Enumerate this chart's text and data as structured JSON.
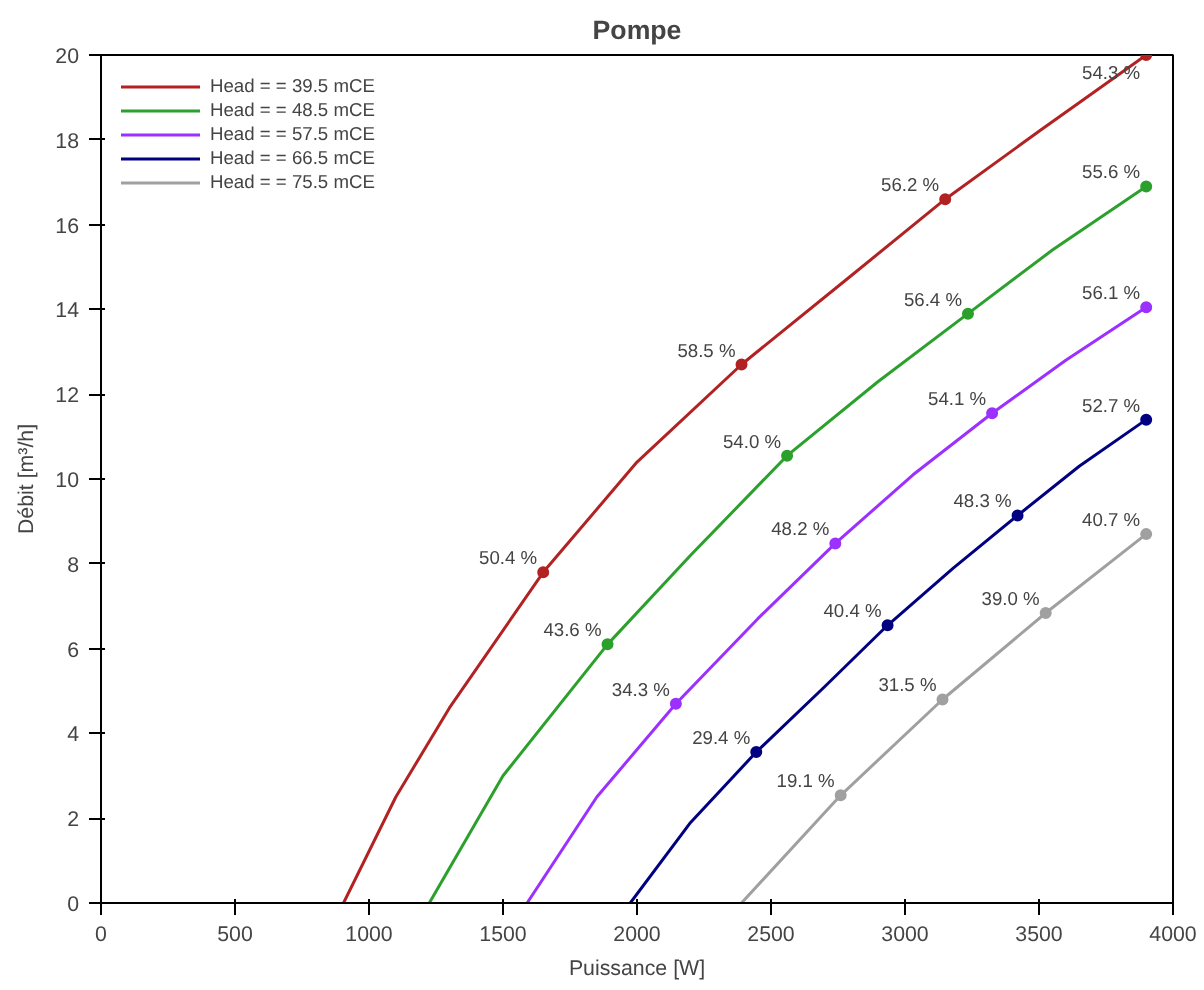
{
  "chart_data": {
    "type": "line",
    "title": "Pompe",
    "xlabel": "Puissance [W]",
    "ylabel": "Débit [m³/h]",
    "xlim": [
      0,
      4000
    ],
    "xticks": [
      0,
      500,
      1000,
      1500,
      2000,
      2500,
      3000,
      3500,
      4000
    ],
    "ylim": [
      0,
      20
    ],
    "yticks": [
      0,
      2,
      4,
      6,
      8,
      10,
      12,
      14,
      16,
      18,
      20
    ],
    "grid": false,
    "legend": "top left",
    "line_style": "solid",
    "series": [
      {
        "name": "Head = = 39.5 mCE",
        "color": "#b22222",
        "marker": "none",
        "x": [
          905,
          1100,
          1300,
          1650,
          2000,
          2390,
          2800,
          3150,
          3500,
          3900
        ],
        "values": [
          0,
          2.5,
          4.6,
          7.8,
          10.4,
          12.7,
          14.8,
          16.6,
          18.2,
          20
        ]
      },
      {
        "name": "Head = = 48.5 mCE",
        "color": "#2ca02c",
        "marker": "none",
        "x": [
          1225,
          1500,
          1890,
          2200,
          2560,
          2900,
          3235,
          3550,
          3900
        ],
        "values": [
          0,
          3.0,
          6.1,
          8.2,
          10.55,
          12.3,
          13.9,
          15.4,
          16.9
        ]
      },
      {
        "name": "Head = = 57.5 mCE",
        "color": "#9b30ff",
        "marker": "none",
        "x": [
          1590,
          1850,
          2145,
          2450,
          2740,
          3030,
          3325,
          3600,
          3900
        ],
        "values": [
          0,
          2.5,
          4.7,
          6.7,
          8.48,
          10.1,
          11.55,
          12.8,
          14.05
        ]
      },
      {
        "name": "Head = = 66.5 mCE",
        "color": "#000080",
        "marker": "none",
        "x": [
          1975,
          2200,
          2445,
          2700,
          2935,
          3180,
          3420,
          3650,
          3900
        ],
        "values": [
          0,
          1.9,
          3.56,
          5.1,
          6.55,
          7.9,
          9.14,
          10.3,
          11.4
        ]
      },
      {
        "name": "Head = = 75.5 mCE",
        "color": "#a0a0a0",
        "marker": "none",
        "x": [
          2390,
          2760,
          3140,
          3525,
          3900
        ],
        "values": [
          0,
          2.54,
          4.8,
          6.84,
          8.7
        ]
      },
      {
        "type": "scatter",
        "color": "#b22222",
        "marker": "circle",
        "x": [
          1650,
          2390,
          3150,
          3900
        ],
        "values": [
          7.8,
          12.7,
          16.6,
          20
        ]
      },
      {
        "type": "scatter",
        "color": "#2ca02c",
        "marker": "circle",
        "x": [
          1890,
          2560,
          3235,
          3900
        ],
        "values": [
          6.1,
          10.55,
          13.9,
          16.9
        ]
      },
      {
        "type": "scatter",
        "color": "#9b30ff",
        "marker": "circle",
        "x": [
          2145,
          2740,
          3325,
          3900
        ],
        "values": [
          4.7,
          8.48,
          11.55,
          14.05
        ]
      },
      {
        "type": "scatter",
        "color": "#000080",
        "marker": "circle",
        "x": [
          2445,
          2935,
          3420,
          3900
        ],
        "values": [
          3.56,
          6.55,
          9.14,
          11.4
        ]
      },
      {
        "type": "scatter",
        "color": "#a0a0a0",
        "marker": "circle",
        "x": [
          2760,
          3140,
          3525,
          3900
        ],
        "values": [
          2.54,
          4.8,
          6.84,
          8.7
        ]
      }
    ],
    "annotations": [
      {
        "text": "50.4 %",
        "x": 1650,
        "y": 7.8
      },
      {
        "text": "58.5 %",
        "x": 2390,
        "y": 12.7
      },
      {
        "text": "56.2 %",
        "x": 3150,
        "y": 16.6
      },
      {
        "text": "54.3 %",
        "x": 3900,
        "y": 20
      },
      {
        "text": "43.6 %",
        "x": 1890,
        "y": 6.1
      },
      {
        "text": "54.0 %",
        "x": 2560,
        "y": 10.55
      },
      {
        "text": "56.4 %",
        "x": 3235,
        "y": 13.9
      },
      {
        "text": "55.6 %",
        "x": 3900,
        "y": 16.9
      },
      {
        "text": "34.3 %",
        "x": 2145,
        "y": 4.7
      },
      {
        "text": "48.2 %",
        "x": 2740,
        "y": 8.48
      },
      {
        "text": "54.1 %",
        "x": 3325,
        "y": 11.55
      },
      {
        "text": "56.1 %",
        "x": 3900,
        "y": 14.05
      },
      {
        "text": "29.4 %",
        "x": 2445,
        "y": 3.56
      },
      {
        "text": "40.4 %",
        "x": 2935,
        "y": 6.55
      },
      {
        "text": "48.3 %",
        "x": 3420,
        "y": 9.14
      },
      {
        "text": "52.7 %",
        "x": 3900,
        "y": 11.4
      },
      {
        "text": "19.1 %",
        "x": 2760,
        "y": 2.54
      },
      {
        "text": "31.5 %",
        "x": 3140,
        "y": 4.8
      },
      {
        "text": "39.0 %",
        "x": 3525,
        "y": 6.84
      },
      {
        "text": "40.7 %",
        "x": 3900,
        "y": 8.7
      }
    ]
  }
}
